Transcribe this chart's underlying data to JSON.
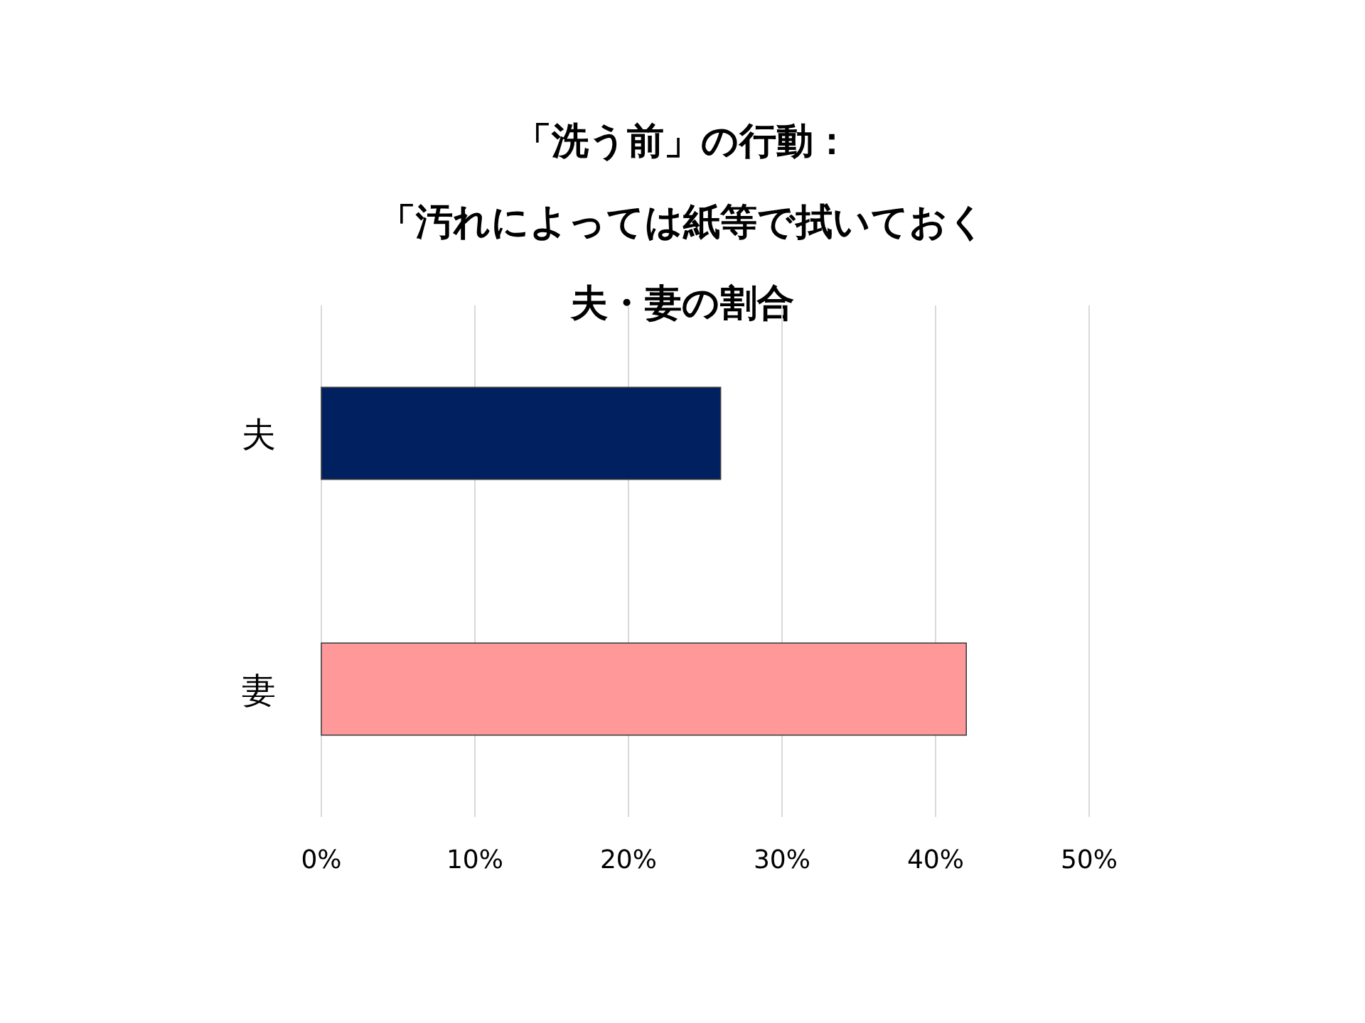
{
  "chart_data": {
    "type": "bar",
    "orientation": "horizontal",
    "title": "「洗う前」の行動：",
    "subtitle": "「汚れによっては紙等で拭いておく",
    "annotations": [
      "夫・妻の割合"
    ],
    "categories": [
      "夫",
      "妻"
    ],
    "values": [
      26,
      42
    ],
    "colors": [
      "#002060",
      "#ff9999"
    ],
    "xlim": [
      0,
      50
    ],
    "xticks": [
      {
        "value": 0,
        "label": "0%"
      },
      {
        "value": 10,
        "label": "10%"
      },
      {
        "value": 20,
        "label": "20%"
      },
      {
        "value": 30,
        "label": "30%"
      },
      {
        "value": 40,
        "label": "40%"
      },
      {
        "value": 50,
        "label": "50%"
      }
    ],
    "grid": "x"
  }
}
